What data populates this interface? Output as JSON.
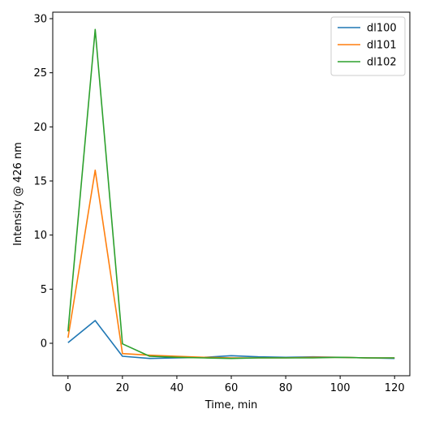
{
  "chart_data": {
    "type": "line",
    "title": "",
    "xlabel": "Time, min",
    "ylabel": "Intensity @ 426 nm",
    "xlim": [
      -5.6,
      125.6
    ],
    "ylim": [
      -3.0,
      30.6
    ],
    "xticks": [
      0,
      20,
      40,
      60,
      80,
      100,
      120
    ],
    "yticks": [
      0,
      5,
      10,
      15,
      20,
      25,
      30
    ],
    "x": [
      0,
      10,
      20,
      30,
      40,
      50,
      60,
      70,
      80,
      90,
      100,
      110,
      120
    ],
    "series": [
      {
        "name": "dl100",
        "color": "#1f77b4",
        "values": [
          0.05,
          2.1,
          -1.2,
          -1.4,
          -1.35,
          -1.3,
          -1.15,
          -1.25,
          -1.3,
          -1.25,
          -1.3,
          -1.35,
          -1.4
        ]
      },
      {
        "name": "dl101",
        "color": "#ff7f0e",
        "values": [
          0.5,
          16.0,
          -0.95,
          -1.1,
          -1.2,
          -1.3,
          -1.35,
          -1.35,
          -1.35,
          -1.3,
          -1.3,
          -1.35,
          -1.35
        ]
      },
      {
        "name": "dl102",
        "color": "#2ca02c",
        "values": [
          1.1,
          29.0,
          -0.05,
          -1.2,
          -1.3,
          -1.35,
          -1.4,
          -1.35,
          -1.35,
          -1.35,
          -1.3,
          -1.35,
          -1.35
        ]
      }
    ],
    "legend": "top-right",
    "grid": false
  }
}
